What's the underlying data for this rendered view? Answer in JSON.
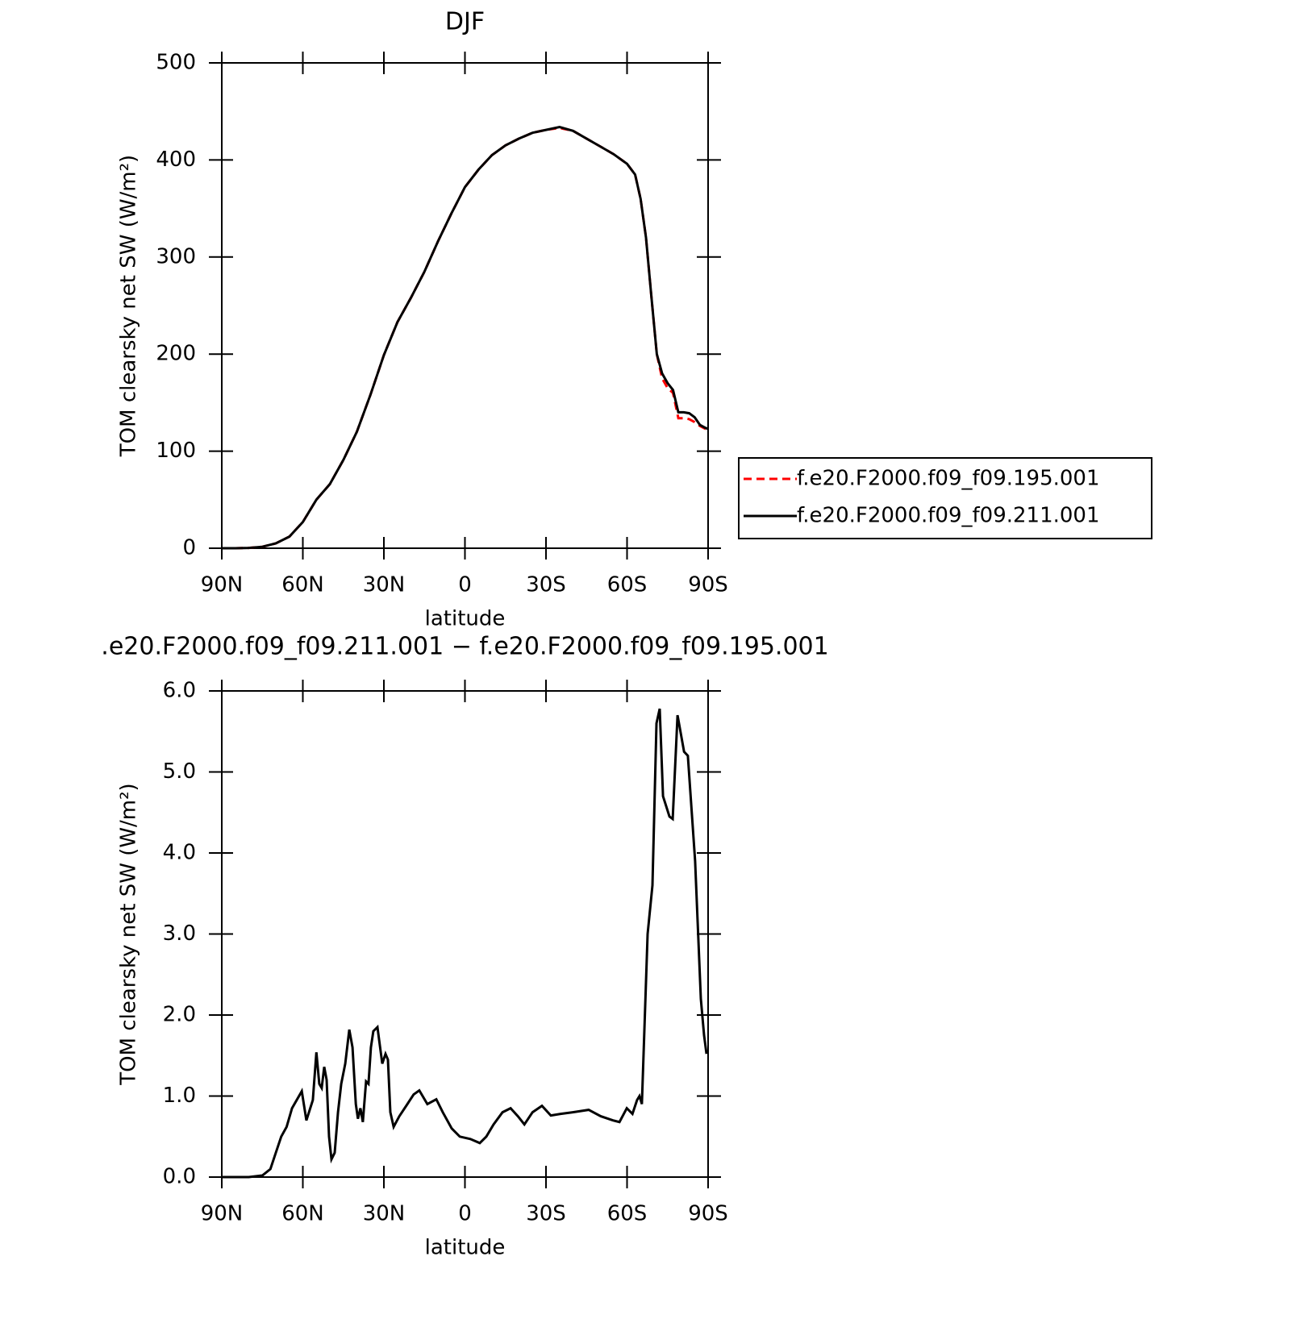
{
  "chart_data": [
    {
      "type": "line",
      "title": "DJF",
      "xlabel": "latitude",
      "ylabel": "TOM clearsky net SW (W/m²)",
      "x": [
        90,
        85,
        80,
        75,
        70,
        65,
        60,
        55,
        50,
        45,
        40,
        35,
        30,
        25,
        20,
        15,
        10,
        5,
        0,
        -5,
        -10,
        -15,
        -20,
        -25,
        -30,
        -35,
        -40,
        -45,
        -50,
        -55,
        -60,
        -63,
        -65,
        -67,
        -69,
        -71,
        -73,
        -75,
        -77,
        -79,
        -81,
        -83,
        -85,
        -87,
        -89,
        -90
      ],
      "xlim": [
        90,
        -90
      ],
      "xticks": [
        {
          "value": 90,
          "label": "90N"
        },
        {
          "value": 60,
          "label": "60N"
        },
        {
          "value": 30,
          "label": "30N"
        },
        0,
        {
          "value": -30,
          "label": "30S"
        },
        {
          "value": -60,
          "label": "60S"
        },
        {
          "value": -90,
          "label": "90S"
        }
      ],
      "ylim": [
        0,
        500
      ],
      "yticks": [
        0,
        100,
        200,
        300,
        400,
        500
      ],
      "legend": "right",
      "series": [
        {
          "name": "f.e20.F2000.f09_f09.195.001",
          "color": "#ff0000",
          "dash": "10,6",
          "values": [
            0,
            0,
            0.3,
            1.5,
            5,
            12,
            27,
            50,
            66,
            91,
            120,
            158,
            199,
            233,
            258,
            285,
            316,
            345,
            372,
            390,
            405,
            415,
            422,
            428,
            431,
            433,
            430,
            422,
            414,
            406,
            396,
            385,
            360,
            320,
            260,
            200,
            175,
            165,
            160,
            134,
            134,
            133,
            130,
            126,
            123,
            122
          ]
        },
        {
          "name": "f.e20.F2000.f09_f09.211.001",
          "color": "#000000",
          "dash": "none",
          "values": [
            0,
            0,
            0.3,
            1.5,
            5,
            12,
            27,
            50,
            66,
            91,
            120,
            158,
            199,
            233,
            258,
            285,
            316,
            345,
            372,
            390,
            405,
            415,
            422,
            428,
            431,
            434,
            430,
            422,
            414,
            406,
            396,
            385,
            360,
            320,
            260,
            200,
            180,
            170,
            163,
            140,
            140,
            139,
            135,
            127,
            124,
            123
          ]
        }
      ]
    },
    {
      "type": "line",
      "title": ".e20.F2000.f09_f09.211.001 − f.e20.F2000.f09_f09.195.001",
      "xlabel": "latitude",
      "ylabel": "TOM clearsky net SW (W/m²)",
      "x": [
        90,
        80,
        75,
        72,
        70,
        68,
        66,
        64,
        60.4,
        58.7,
        56.3,
        55,
        53.9,
        53,
        52.1,
        51.2,
        50.3,
        49.4,
        48.2,
        47,
        45.8,
        44.3,
        42.8,
        41.6,
        40.4,
        39.6,
        38.7,
        37.8,
        36.6,
        35.7,
        34.8,
        33.9,
        32.4,
        30.6,
        29.4,
        28.5,
        27.6,
        26.4,
        24.3,
        21.3,
        19,
        16.9,
        13.9,
        10.6,
        8.2,
        4.9,
        1.9,
        -2,
        -5.5,
        -7.9,
        -10.6,
        -13.9,
        -16.9,
        -19.6,
        -22,
        -25,
        -28.5,
        -31.8,
        -35.4,
        -39.9,
        -45.8,
        -50.3,
        -54.8,
        -57.2,
        -59.9,
        -62,
        -63.7,
        -64.6,
        -65.5,
        -67.6,
        -69.4,
        -70.9,
        -72.1,
        -73.3,
        -75.7,
        -76.9,
        -78.7,
        -81.1,
        -82.5,
        -85.2,
        -87.3,
        -88.5,
        -89.4
      ],
      "xlim": [
        90,
        -90
      ],
      "xticks": [
        {
          "value": 90,
          "label": "90N"
        },
        {
          "value": 60,
          "label": "60N"
        },
        {
          "value": 30,
          "label": "30N"
        },
        0,
        {
          "value": -30,
          "label": "30S"
        },
        {
          "value": -60,
          "label": "60S"
        },
        {
          "value": -90,
          "label": "90S"
        }
      ],
      "ylim": [
        0,
        6
      ],
      "yticks": [
        {
          "value": 0,
          "label": "0.0"
        },
        {
          "value": 1,
          "label": "1.0"
        },
        {
          "value": 2,
          "label": "2.0"
        },
        {
          "value": 3,
          "label": "3.0"
        },
        {
          "value": 4,
          "label": "4.0"
        },
        {
          "value": 5,
          "label": "5.0"
        },
        {
          "value": 6,
          "label": "6.0"
        }
      ],
      "series": [
        {
          "color": "#000000",
          "dash": "none",
          "values": [
            0,
            0,
            0.02,
            0.1,
            0.3,
            0.5,
            0.62,
            0.85,
            1.06,
            0.7,
            0.95,
            1.54,
            1.15,
            1.1,
            1.36,
            1.2,
            0.5,
            0.22,
            0.3,
            0.8,
            1.15,
            1.4,
            1.82,
            1.6,
            0.9,
            0.72,
            0.85,
            0.68,
            1.18,
            1.15,
            1.6,
            1.8,
            1.85,
            1.4,
            1.52,
            1.45,
            0.8,
            0.62,
            0.75,
            0.9,
            1.02,
            1.07,
            0.9,
            0.96,
            0.8,
            0.6,
            0.5,
            0.47,
            0.42,
            0.5,
            0.65,
            0.8,
            0.85,
            0.75,
            0.65,
            0.8,
            0.88,
            0.76,
            0.78,
            0.8,
            0.83,
            0.75,
            0.7,
            0.68,
            0.85,
            0.78,
            0.95,
            1.0,
            0.9,
            3.0,
            3.6,
            5.6,
            5.78,
            4.7,
            4.45,
            4.42,
            5.7,
            5.25,
            5.2,
            3.9,
            2.2,
            1.75,
            1.52
          ]
        }
      ]
    }
  ]
}
